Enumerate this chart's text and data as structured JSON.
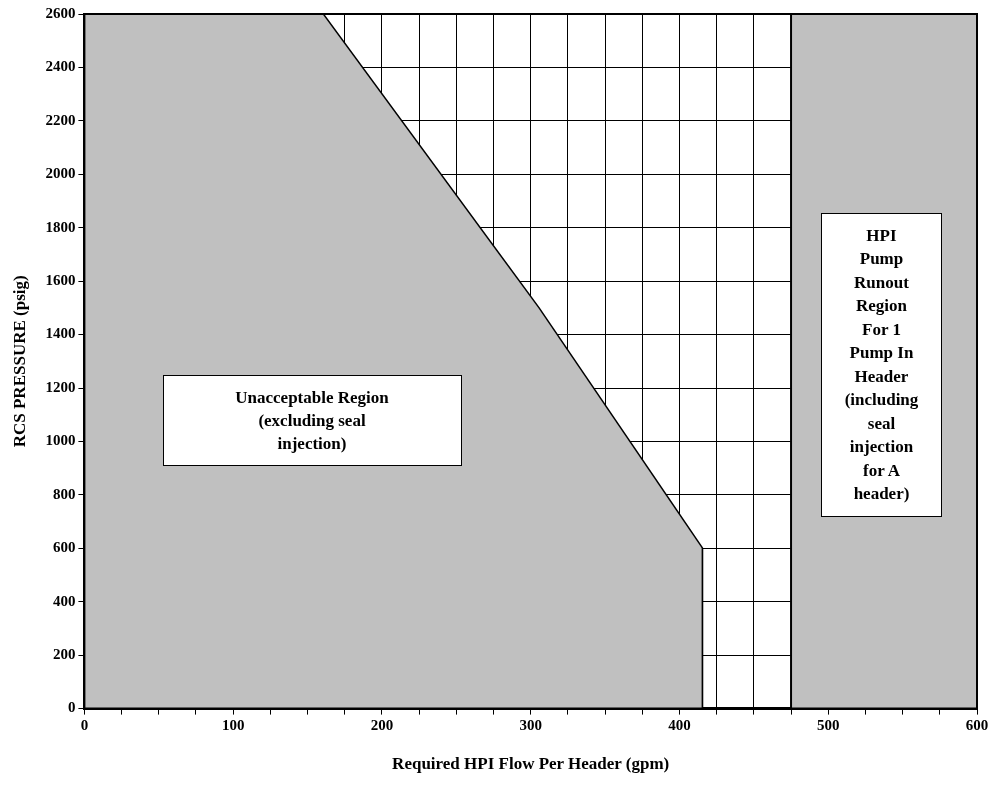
{
  "chart_data": {
    "type": "line",
    "xlabel": "Required HPI Flow Per Header (gpm)",
    "ylabel": "RCS PRESSURE (psig)",
    "series": [
      {
        "type": "area",
        "color": "#c0c0c0",
        "x": [
          0,
          160,
          305,
          415
        ],
        "values": [
          2600,
          2600,
          1500,
          600
        ]
      },
      {
        "type": "line",
        "color": "#000000",
        "x": [
          160,
          305,
          415,
          415,
          475
        ],
        "values": [
          2600,
          1500,
          600,
          0,
          0
        ]
      }
    ],
    "bands": [
      {
        "axis": "x",
        "from": 475,
        "to": 600,
        "color": "#c0c0c0"
      }
    ],
    "ref_lines": [
      {
        "axis": "x",
        "value": 475,
        "color": "#000000"
      }
    ],
    "annotations": [
      "Unacceptable Region\n(excluding seal\ninjection)",
      "HPI\nPump\nRunout\nRegion\nFor 1\nPump In\nHeader\n(including\nseal\ninjection\nfor A\nheader)"
    ],
    "xlim": [
      0,
      600
    ],
    "ylim": [
      0,
      2600
    ],
    "xticks": [
      0,
      {
        "value": 25,
        "label": null
      },
      {
        "value": 50,
        "label": null
      },
      {
        "value": 75,
        "label": null
      },
      100,
      {
        "value": 125,
        "label": null
      },
      {
        "value": 150,
        "label": null
      },
      {
        "value": 175,
        "label": null
      },
      200,
      {
        "value": 225,
        "label": null
      },
      {
        "value": 250,
        "label": null
      },
      {
        "value": 275,
        "label": null
      },
      300,
      {
        "value": 325,
        "label": null
      },
      {
        "value": 350,
        "label": null
      },
      {
        "value": 375,
        "label": null
      },
      400,
      {
        "value": 425,
        "label": null
      },
      {
        "value": 450,
        "label": null
      },
      {
        "value": 475,
        "label": null
      },
      500,
      {
        "value": 525,
        "label": null
      },
      {
        "value": 550,
        "label": null
      },
      {
        "value": 575,
        "label": null
      },
      600
    ],
    "yticks": [
      0,
      200,
      400,
      600,
      800,
      1000,
      1200,
      1400,
      1600,
      1800,
      2000,
      2200,
      2400,
      2600
    ],
    "grid": true,
    "legend": false,
    "marker": "none",
    "line_style": "solid"
  }
}
